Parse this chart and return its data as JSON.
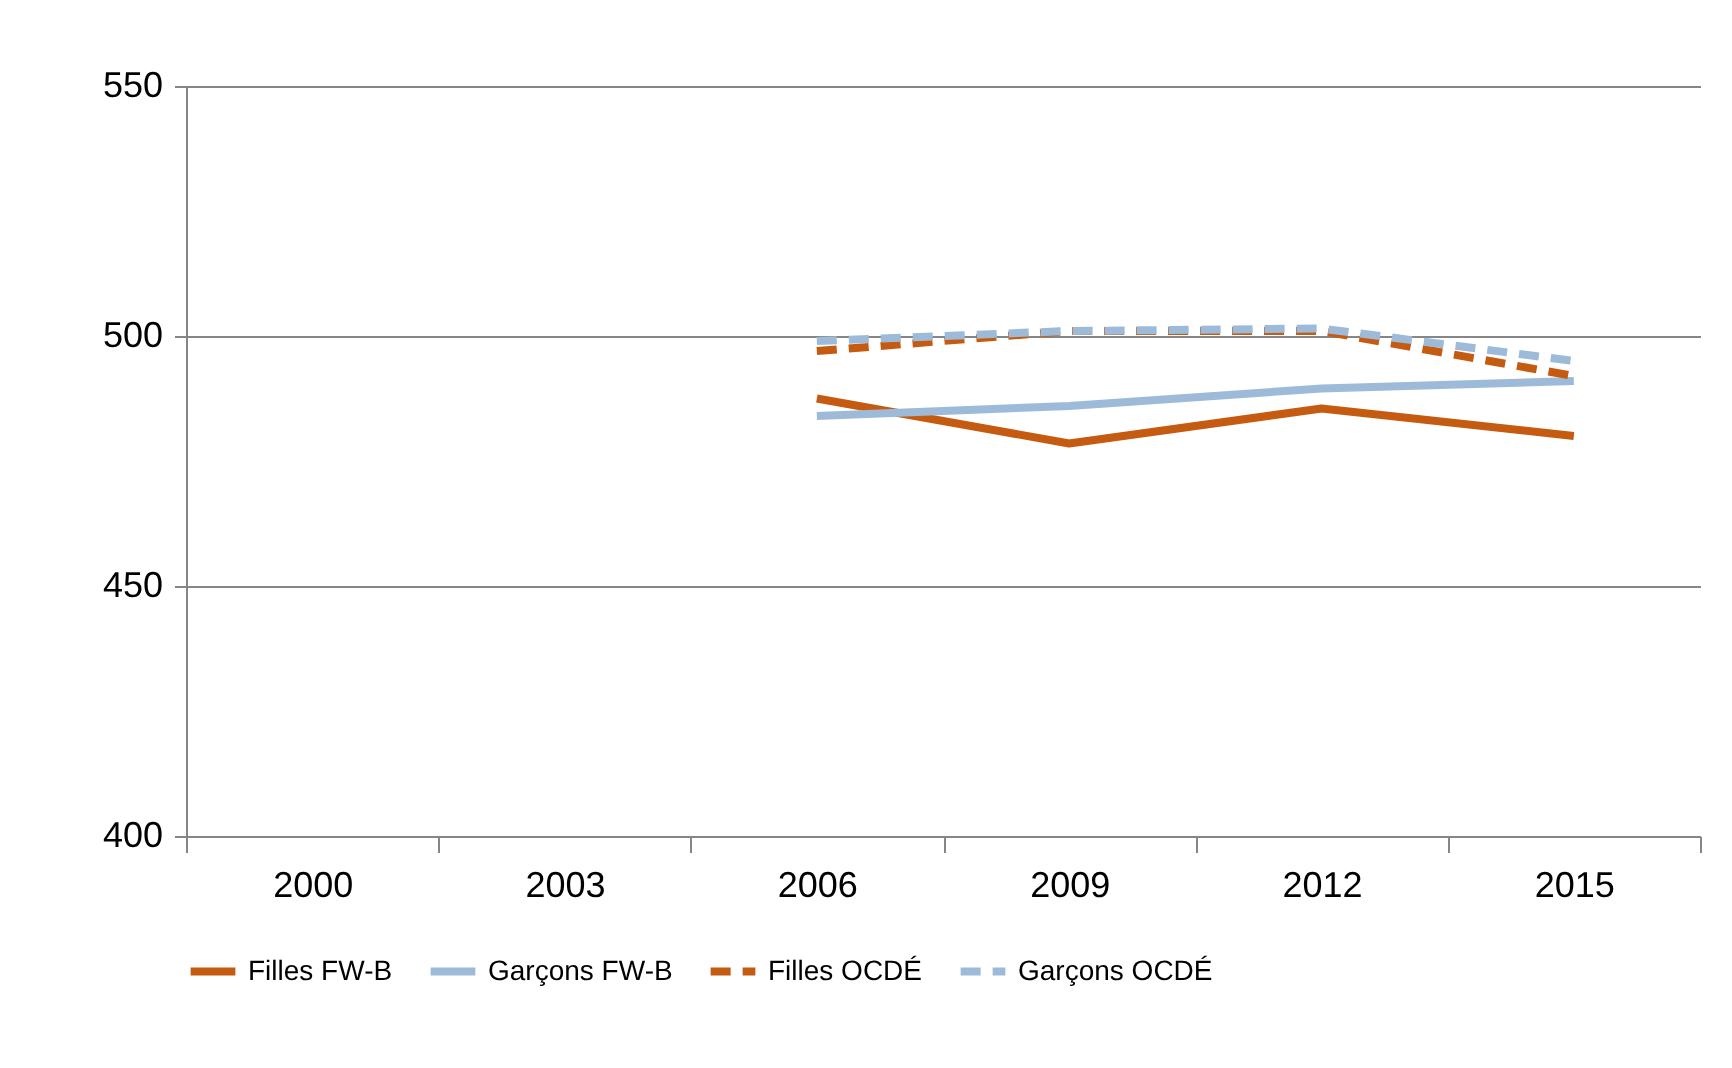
{
  "chart_data": {
    "type": "line",
    "categories": [
      "2000",
      "2003",
      "2006",
      "2009",
      "2012",
      "2015"
    ],
    "series": [
      {
        "name": "Filles FW-B",
        "color": "#c55a11",
        "line_style": "solid",
        "values": [
          null,
          null,
          487.5,
          478.5,
          485.5,
          480
        ]
      },
      {
        "name": "Garçons FW-B",
        "color": "#9dbbd8",
        "line_style": "solid",
        "values": [
          null,
          null,
          484,
          486,
          489.5,
          491
        ]
      },
      {
        "name": "Filles OCDÉ",
        "color": "#c55a11",
        "line_style": "dashed",
        "values": [
          null,
          null,
          497,
          501,
          501,
          492
        ]
      },
      {
        "name": "Garçons OCDÉ",
        "color": "#9dbbd8",
        "line_style": "dashed",
        "values": [
          null,
          null,
          499,
          501,
          501.5,
          495
        ]
      }
    ],
    "ylim": [
      400,
      550
    ],
    "yticks": [
      400,
      450,
      500,
      550
    ],
    "grid": "y",
    "legend": "bottom"
  }
}
